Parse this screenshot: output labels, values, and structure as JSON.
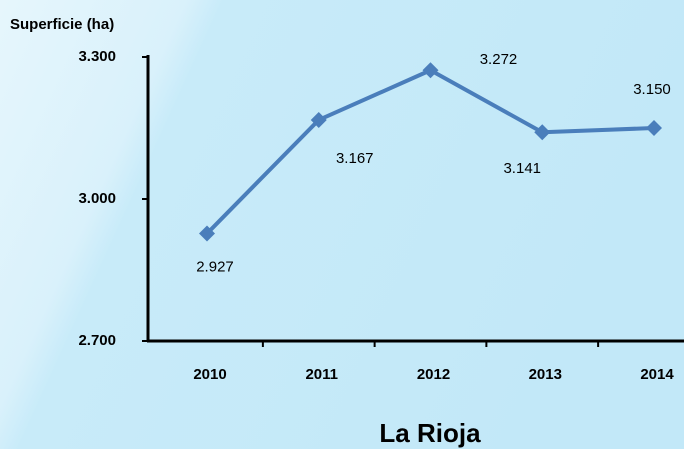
{
  "chart_data": {
    "type": "line",
    "title": "La Rioja",
    "y_label": "Superficie (ha)",
    "categories": [
      "2010",
      "2011",
      "2012",
      "2013",
      "2014"
    ],
    "series": [
      {
        "name": "La Rioja",
        "color": "#4a7ebb",
        "values": [
          2927,
          3167,
          3272,
          3141,
          3150
        ],
        "value_labels": [
          "2.927",
          "3.167",
          "3.272",
          "3.141",
          "3.150"
        ]
      }
    ],
    "ylim": [
      2700,
      3300
    ],
    "yticks": [
      {
        "value": 2700,
        "label": "2.700"
      },
      {
        "value": 3000,
        "label": "3.000"
      },
      {
        "value": 3300,
        "label": "3.300"
      }
    ]
  }
}
